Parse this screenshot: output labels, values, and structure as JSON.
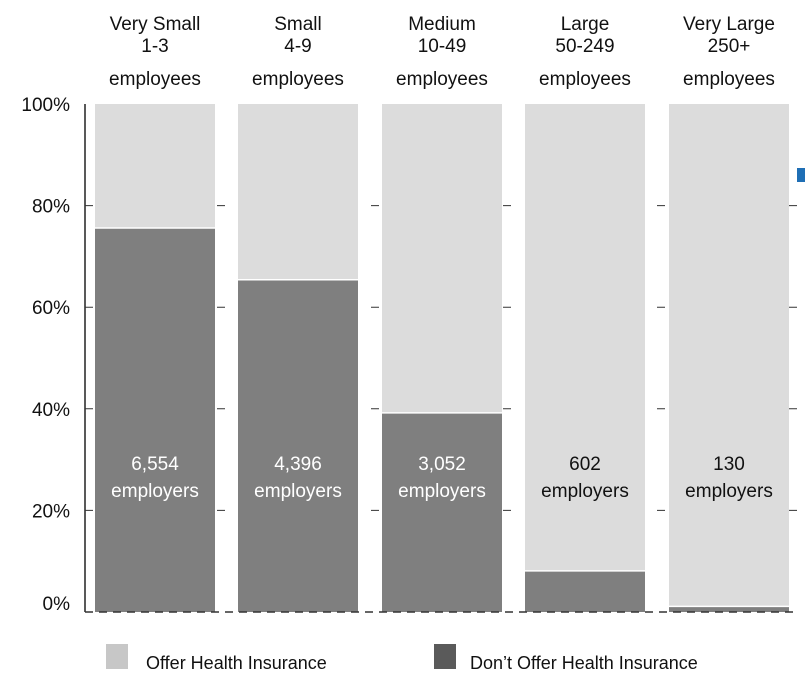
{
  "colors": {
    "offer": "#dcdcdc",
    "dont_offer": "#7f7f7f",
    "legend_offer_swatch": "#c7c7c7",
    "legend_dont_swatch": "#5a5a5a",
    "accent": "#1f6fb5"
  },
  "chart_data": {
    "type": "bar",
    "stacked": true,
    "percent": true,
    "categories": [
      [
        "Very Small",
        "1-3",
        "employees"
      ],
      [
        "Small",
        "4-9",
        "employees"
      ],
      [
        "Medium",
        "10-49",
        "employees"
      ],
      [
        "Large",
        "50-249",
        "employees"
      ],
      [
        "Very Large",
        "250+",
        "employees"
      ]
    ],
    "series": [
      {
        "name": "Don’t Offer Health Insurance",
        "values": [
          75.6,
          65.4,
          39.2,
          8.1,
          1.1
        ]
      },
      {
        "name": "Offer Health Insurance",
        "values": [
          24.4,
          34.6,
          60.8,
          91.9,
          98.9
        ]
      }
    ],
    "data_labels": [
      [
        "6,554",
        "employers"
      ],
      [
        "4,396",
        "employers"
      ],
      [
        "3,052",
        "employers"
      ],
      [
        "602",
        "employers"
      ],
      [
        "130",
        "employers"
      ]
    ],
    "yticks": [
      "100%",
      "80%",
      "60%",
      "40%",
      "20%",
      "0%"
    ],
    "ylim": [
      0,
      100
    ],
    "grid": "dashed",
    "legend": {
      "position": "bottom",
      "items": [
        "Offer Health Insurance",
        "Don’t Offer Health Insurance"
      ]
    }
  }
}
